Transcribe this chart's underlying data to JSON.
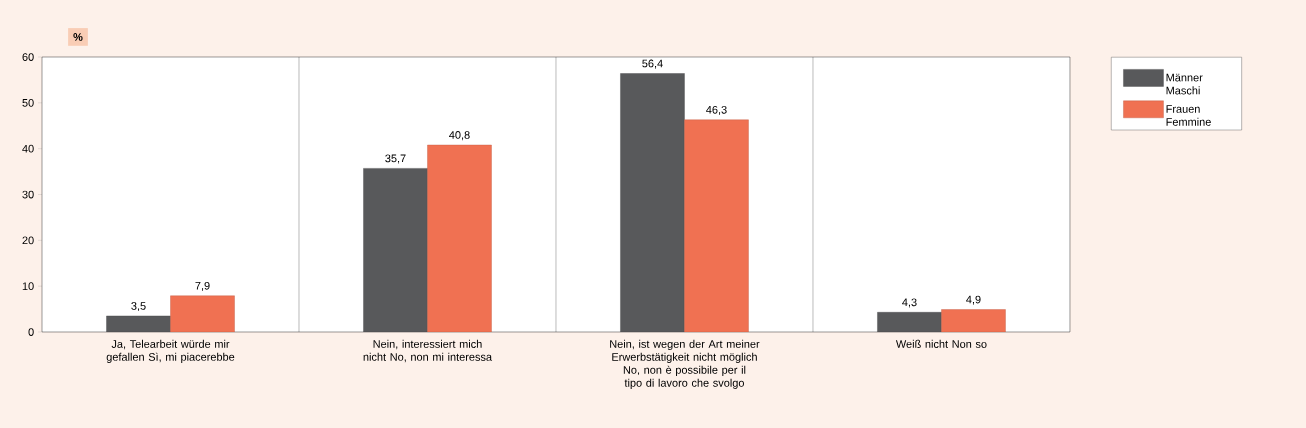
{
  "chart_data": {
    "type": "bar",
    "ylabel": "%",
    "categories": [
      "Ja, Telearbeit würde mir gefallen Sì, mi piacerebbe",
      "Nein, interessiert mich nicht No, non mi interessa",
      "Nein, ist wegen der Art meiner Erwerbstätigkeit nicht möglich No, non è possibile per il tipo di lavoro che svolgo",
      "Weiß nicht Non so"
    ],
    "series": [
      {
        "name": "Männer Maschi",
        "color": "#58595b",
        "values": [
          3.5,
          35.7,
          56.4,
          4.3
        ],
        "value_labels": [
          "3,5",
          "35,7",
          "56,4",
          "4,3"
        ]
      },
      {
        "name": "Frauen Femmine",
        "color": "#f07152",
        "values": [
          7.9,
          40.8,
          46.3,
          4.9
        ],
        "value_labels": [
          "7,9",
          "40,8",
          "46,3",
          "4,9"
        ]
      }
    ],
    "ylim": [
      0,
      60
    ],
    "yticks": [
      0,
      10,
      20,
      30,
      40,
      50,
      60
    ],
    "grid": "x",
    "legend": "right"
  }
}
